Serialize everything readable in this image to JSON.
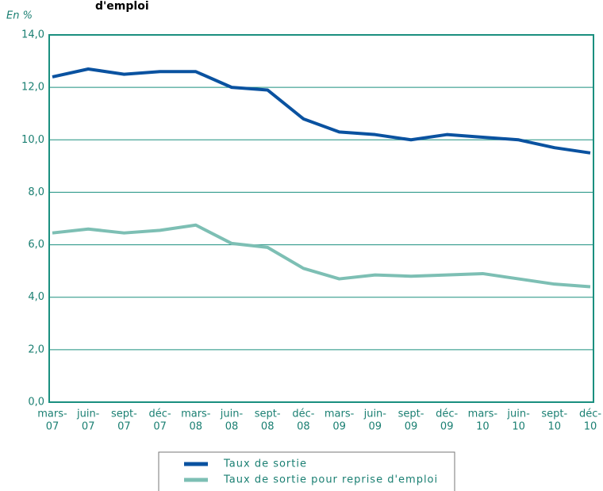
{
  "chart_data": {
    "type": "line",
    "title": "d'emploi",
    "y_label": "En %",
    "categories": [
      [
        "mars-",
        "07"
      ],
      [
        "juin-",
        "07"
      ],
      [
        "sept-",
        "07"
      ],
      [
        "déc-",
        "07"
      ],
      [
        "mars-",
        "08"
      ],
      [
        "juin-",
        "08"
      ],
      [
        "sept-",
        "08"
      ],
      [
        "déc-",
        "08"
      ],
      [
        "mars-",
        "09"
      ],
      [
        "juin-",
        "09"
      ],
      [
        "sept-",
        "09"
      ],
      [
        "déc-",
        "09"
      ],
      [
        "mars-",
        "10"
      ],
      [
        "juin-",
        "10"
      ],
      [
        "sept-",
        "10"
      ],
      [
        "déc-",
        "10"
      ]
    ],
    "series": [
      {
        "name": "Taux de sortie",
        "color": "#0a52a0",
        "values": [
          12.4,
          12.7,
          12.5,
          12.6,
          12.6,
          12.0,
          11.9,
          10.8,
          10.3,
          10.2,
          10.0,
          10.2,
          10.1,
          10.0,
          9.7,
          9.5
        ]
      },
      {
        "name": "Taux de sortie pour reprise d'emploi",
        "color": "#7dbfb4",
        "values": [
          6.45,
          6.6,
          6.45,
          6.55,
          6.75,
          6.05,
          5.9,
          5.1,
          4.7,
          4.85,
          4.8,
          4.85,
          4.9,
          4.7,
          4.5,
          4.4
        ]
      }
    ],
    "ylim": [
      0,
      14
    ],
    "yticks": [
      {
        "value": 0,
        "label": "0,0"
      },
      {
        "value": 2,
        "label": "2,0"
      },
      {
        "value": 4,
        "label": "4,0"
      },
      {
        "value": 6,
        "label": "6,0"
      },
      {
        "value": 8,
        "label": "8,0"
      },
      {
        "value": 10,
        "label": "10,0"
      },
      {
        "value": 12,
        "label": "12,0"
      },
      {
        "value": 14,
        "label": "14,0"
      }
    ],
    "grid": true
  }
}
